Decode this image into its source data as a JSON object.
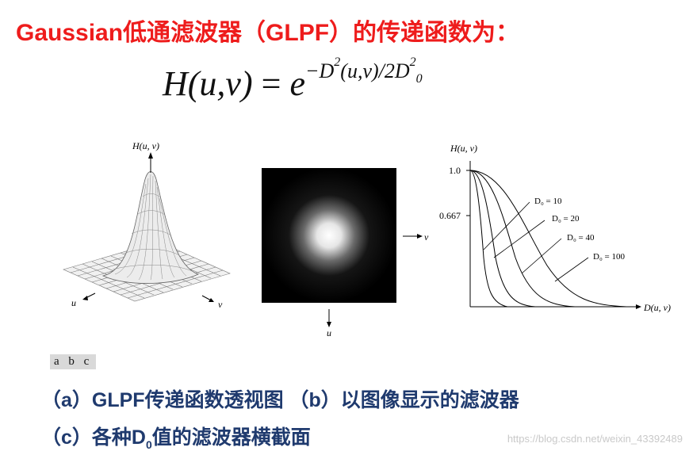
{
  "title": "Gaussian低通滤波器（GLPF）的传递函数为：",
  "formula": {
    "lhs": "H(u,v)",
    "eq": "=",
    "base": "e",
    "exponent_main": "−D",
    "exponent_sq": "2",
    "exponent_arg": "(u,v)/2D",
    "exponent_sub": "0",
    "exponent_sq2": "2"
  },
  "figure_a": {
    "axis_h": "H(u, v)",
    "axis_u": "u",
    "axis_v": "v"
  },
  "figure_b": {
    "axis_u": "u",
    "axis_v": "v"
  },
  "figure_c": {
    "axis_y": "H(u, v)",
    "axis_x": "D(u, v)",
    "tick_top": "1.0",
    "tick_mid": "0.667",
    "curve_labels": [
      "D₀ = 10",
      "D₀ = 20",
      "D₀ = 40",
      "D₀ = 100"
    ]
  },
  "panel_labels": "a b c",
  "caption_line1": "（a）GLPF传递函数透视图 （b）以图像显示的滤波器",
  "caption_line2_pre": "（c）各种D",
  "caption_line2_sub": "0",
  "caption_line2_post": "值的滤波器横截面",
  "watermark": "https://blog.csdn.net/weixin_43392489"
}
